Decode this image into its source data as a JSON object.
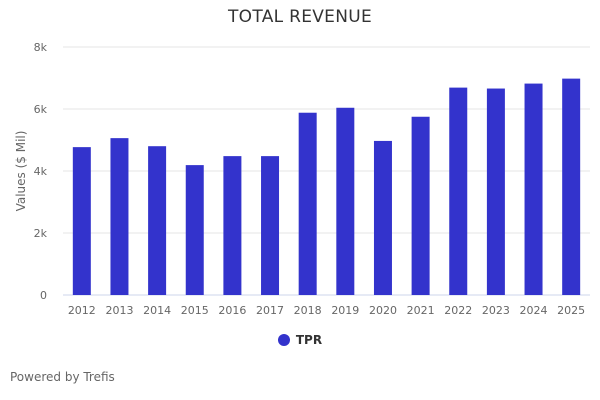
{
  "chart_data": {
    "type": "bar",
    "title": "TOTAL REVENUE",
    "xlabel": "",
    "ylabel": "Values ($ Mil)",
    "ylim": [
      0,
      8000
    ],
    "yticks": [
      0,
      2000,
      4000,
      6000,
      8000
    ],
    "ytick_labels": [
      "0",
      "2k",
      "4k",
      "6k",
      "8k"
    ],
    "grid": true,
    "legend_position": "bottom-center",
    "categories": [
      "2012",
      "2013",
      "2014",
      "2015",
      "2016",
      "2017",
      "2018",
      "2019",
      "2020",
      "2021",
      "2022",
      "2023",
      "2024",
      "2025"
    ],
    "series": [
      {
        "name": "TPR",
        "color": "#3333cc",
        "values": [
          4770,
          5060,
          4800,
          4190,
          4480,
          4480,
          5880,
          6040,
          4970,
          5750,
          6690,
          6660,
          6820,
          6980
        ]
      }
    ]
  },
  "footer": {
    "credit": "Powered by Trefis"
  },
  "colors": {
    "bar": "#3333cc",
    "grid": "#e6e6e6",
    "axis": "#ccd6eb"
  }
}
